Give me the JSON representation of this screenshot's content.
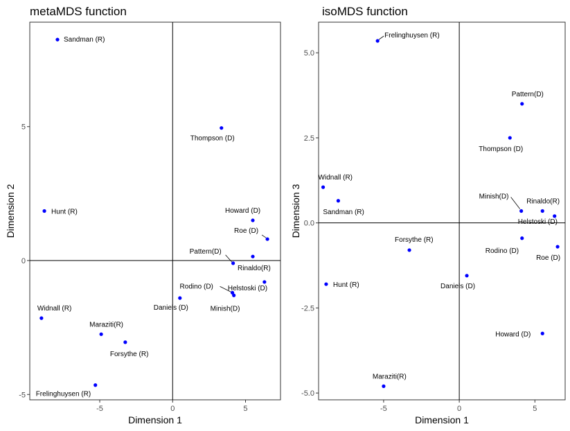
{
  "chart_data": [
    {
      "type": "scatter",
      "title": "metaMDS function",
      "xlabel": "Dimension 1",
      "ylabel": "Dimension 2",
      "xlim": [
        -9.8,
        7.4
      ],
      "ylim": [
        -5.2,
        8.9
      ],
      "xticks": [
        -5,
        0,
        5
      ],
      "yticks": [
        -5,
        0,
        5
      ],
      "xtick_labels": [
        "-5",
        "0",
        "5"
      ],
      "ytick_labels": [
        "-5",
        "0",
        "5"
      ],
      "point_color": "#0000ff",
      "ref_lines": {
        "x": 0,
        "y": 0
      },
      "points": [
        {
          "label": "Sandman (R)",
          "x": -7.9,
          "y": 8.25
        },
        {
          "label": "Thompson (D)",
          "x": 3.35,
          "y": 4.95
        },
        {
          "label": "Hunt (R)",
          "x": -8.8,
          "y": 1.85
        },
        {
          "label": "Howard (D)",
          "x": 5.5,
          "y": 1.5
        },
        {
          "label": "Roe (D)",
          "x": 6.5,
          "y": 0.8
        },
        {
          "label": "Pattern(D)",
          "x": 4.15,
          "y": -0.1
        },
        {
          "label": "Rinaldo(R)",
          "x": 5.5,
          "y": 0.15
        },
        {
          "label": "Helstoski (D)",
          "x": 6.3,
          "y": -0.8
        },
        {
          "label": "Rodino (D)",
          "x": 4.1,
          "y": -1.2
        },
        {
          "label": "Minish(D)",
          "x": 4.2,
          "y": -1.3
        },
        {
          "label": "Daniels (D)",
          "x": 0.5,
          "y": -1.4
        },
        {
          "label": "Widnall (R)",
          "x": -9.0,
          "y": -2.15
        },
        {
          "label": "Maraziti(R)",
          "x": -4.9,
          "y": -2.75
        },
        {
          "label": "Forsythe (R)",
          "x": -3.25,
          "y": -3.05
        },
        {
          "label": "Frelinghuysen (R)",
          "x": -5.3,
          "y": -4.65
        }
      ]
    },
    {
      "type": "scatter",
      "title": "isoMDS function",
      "xlabel": "Dimension 1",
      "ylabel": "Dimension 3",
      "xlim": [
        -9.3,
        7.0
      ],
      "ylim": [
        -5.2,
        5.9
      ],
      "xticks": [
        -5,
        0,
        5
      ],
      "yticks": [
        -5.0,
        -2.5,
        0.0,
        2.5,
        5.0
      ],
      "xtick_labels": [
        "-5",
        "0",
        "5"
      ],
      "ytick_labels": [
        "-5.0",
        "-2.5",
        "0.0",
        "2.5",
        "5.0"
      ],
      "point_color": "#0000ff",
      "ref_lines": {
        "x": 0,
        "y": 0
      },
      "points": [
        {
          "label": "Frelinghuysen (R)",
          "x": -5.4,
          "y": 5.35
        },
        {
          "label": "Pattern(D)",
          "x": 4.15,
          "y": 3.5
        },
        {
          "label": "Thompson (D)",
          "x": 3.35,
          "y": 2.5
        },
        {
          "label": "Widnall (R)",
          "x": -9.0,
          "y": 1.05
        },
        {
          "label": "Sandman (R)",
          "x": -8.0,
          "y": 0.65
        },
        {
          "label": "Minish(D)",
          "x": 4.1,
          "y": 0.35
        },
        {
          "label": "Rinaldo(R)",
          "x": 5.5,
          "y": 0.35
        },
        {
          "label": "Helstoski (D)",
          "x": 6.3,
          "y": 0.2
        },
        {
          "label": "Rodino (D)",
          "x": 4.15,
          "y": -0.45
        },
        {
          "label": "Roe (D)",
          "x": 6.5,
          "y": -0.7
        },
        {
          "label": "Forsythe (R)",
          "x": -3.3,
          "y": -0.8
        },
        {
          "label": "Daniels (D)",
          "x": 0.5,
          "y": -1.55
        },
        {
          "label": "Hunt (R)",
          "x": -8.8,
          "y": -1.8
        },
        {
          "label": "Howard (D)",
          "x": 5.5,
          "y": -3.25
        },
        {
          "label": "Maraziti(R)",
          "x": -5.0,
          "y": -4.8
        }
      ]
    }
  ]
}
